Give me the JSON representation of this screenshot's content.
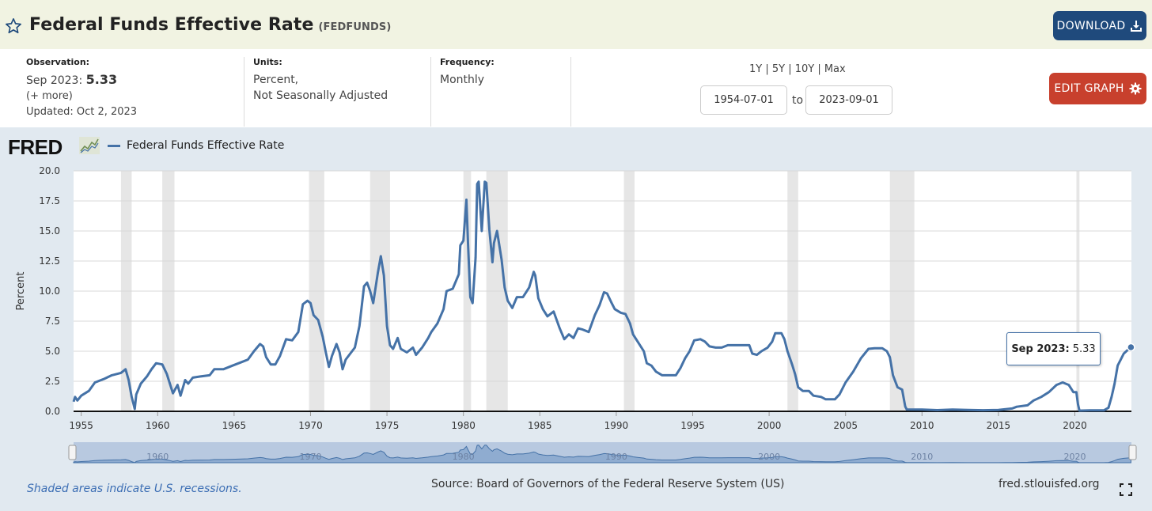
{
  "header": {
    "title": "Federal Funds Effective Rate",
    "series_id": "(FEDFUNDS)",
    "download_label": "DOWNLOAD"
  },
  "meta": {
    "observation_label": "Observation:",
    "observation_period": "Sep 2023:",
    "observation_value": "5.33",
    "more": "(+ more)",
    "updated": "Updated: Oct 2, 2023",
    "units_label": "Units:",
    "units_line1": "Percent,",
    "units_line2": "Not Seasonally Adjusted",
    "frequency_label": "Frequency:",
    "frequency_value": "Monthly",
    "range_links": "1Y | 5Y | 10Y | Max",
    "start_date": "1954-07-01",
    "to_label": "to",
    "end_date": "2023-09-01",
    "edit_label": "EDIT GRAPH"
  },
  "legend": {
    "logo": "FRED",
    "series_name": "Federal Funds Effective Rate",
    "color": "#4572a7"
  },
  "tooltip": {
    "label": "Sep 2023:",
    "value": "5.33"
  },
  "footer": {
    "recession_note": "Shaded areas indicate U.S. recessions.",
    "source": "Source: Board of Governors of the Federal Reserve System (US)",
    "site": "fred.stlouisfed.org"
  },
  "chart_data": {
    "type": "line",
    "ylabel": "Percent",
    "ylim": [
      0,
      20
    ],
    "yticks": [
      "0.0",
      "2.5",
      "5.0",
      "7.5",
      "10.0",
      "12.5",
      "15.0",
      "17.5",
      "20.0"
    ],
    "xlim": [
      1954.5,
      2023.7
    ],
    "xticks": [
      "1955",
      "1960",
      "1965",
      "1970",
      "1975",
      "1980",
      "1985",
      "1990",
      "1995",
      "2000",
      "2005",
      "2010",
      "2015",
      "2020"
    ],
    "navigator_ticks": [
      "1960",
      "1970",
      "1980",
      "1990",
      "2000",
      "2010",
      "2020"
    ],
    "recessions": [
      [
        1957.6,
        1958.3
      ],
      [
        1960.3,
        1961.1
      ],
      [
        1969.9,
        1970.9
      ],
      [
        1973.9,
        1975.2
      ],
      [
        1980.0,
        1980.5
      ],
      [
        1981.5,
        1982.9
      ],
      [
        1990.5,
        1991.2
      ],
      [
        2001.2,
        2001.9
      ],
      [
        2007.9,
        2009.5
      ],
      [
        2020.1,
        2020.3
      ]
    ],
    "series": [
      {
        "name": "Federal Funds Effective Rate",
        "color": "#4572a7",
        "points": [
          [
            1954.5,
            0.8
          ],
          [
            1954.6,
            1.2
          ],
          [
            1954.75,
            0.9
          ],
          [
            1955.0,
            1.3
          ],
          [
            1955.5,
            1.7
          ],
          [
            1955.9,
            2.4
          ],
          [
            1956.5,
            2.7
          ],
          [
            1957.0,
            3.0
          ],
          [
            1957.6,
            3.2
          ],
          [
            1957.9,
            3.5
          ],
          [
            1958.1,
            2.6
          ],
          [
            1958.3,
            1.2
          ],
          [
            1958.4,
            0.7
          ],
          [
            1958.5,
            0.2
          ],
          [
            1958.6,
            1.4
          ],
          [
            1958.9,
            2.3
          ],
          [
            1959.3,
            2.9
          ],
          [
            1959.6,
            3.5
          ],
          [
            1959.9,
            4.0
          ],
          [
            1960.3,
            3.9
          ],
          [
            1960.6,
            3.1
          ],
          [
            1960.8,
            2.3
          ],
          [
            1961.0,
            1.5
          ],
          [
            1961.3,
            2.2
          ],
          [
            1961.5,
            1.3
          ],
          [
            1961.8,
            2.6
          ],
          [
            1962.0,
            2.3
          ],
          [
            1962.3,
            2.8
          ],
          [
            1962.8,
            2.9
          ],
          [
            1963.4,
            3.0
          ],
          [
            1963.7,
            3.5
          ],
          [
            1964.3,
            3.5
          ],
          [
            1964.9,
            3.8
          ],
          [
            1965.5,
            4.1
          ],
          [
            1965.9,
            4.3
          ],
          [
            1966.3,
            5.0
          ],
          [
            1966.7,
            5.6
          ],
          [
            1966.9,
            5.4
          ],
          [
            1967.1,
            4.5
          ],
          [
            1967.4,
            3.9
          ],
          [
            1967.7,
            3.9
          ],
          [
            1968.0,
            4.6
          ],
          [
            1968.4,
            6.0
          ],
          [
            1968.8,
            5.9
          ],
          [
            1969.2,
            6.6
          ],
          [
            1969.5,
            8.9
          ],
          [
            1969.8,
            9.2
          ],
          [
            1970.0,
            9.0
          ],
          [
            1970.2,
            8.0
          ],
          [
            1970.5,
            7.6
          ],
          [
            1970.8,
            6.2
          ],
          [
            1971.0,
            4.9
          ],
          [
            1971.2,
            3.7
          ],
          [
            1971.4,
            4.6
          ],
          [
            1971.7,
            5.6
          ],
          [
            1971.9,
            4.9
          ],
          [
            1972.1,
            3.5
          ],
          [
            1972.3,
            4.3
          ],
          [
            1972.6,
            4.8
          ],
          [
            1972.9,
            5.3
          ],
          [
            1973.2,
            7.1
          ],
          [
            1973.5,
            10.4
          ],
          [
            1973.7,
            10.7
          ],
          [
            1973.9,
            10.0
          ],
          [
            1974.1,
            9.0
          ],
          [
            1974.4,
            11.5
          ],
          [
            1974.6,
            12.9
          ],
          [
            1974.8,
            11.3
          ],
          [
            1975.0,
            7.1
          ],
          [
            1975.2,
            5.5
          ],
          [
            1975.4,
            5.2
          ],
          [
            1975.7,
            6.1
          ],
          [
            1975.9,
            5.2
          ],
          [
            1976.3,
            4.9
          ],
          [
            1976.7,
            5.3
          ],
          [
            1976.9,
            4.7
          ],
          [
            1977.3,
            5.3
          ],
          [
            1977.7,
            6.1
          ],
          [
            1977.9,
            6.6
          ],
          [
            1978.3,
            7.3
          ],
          [
            1978.7,
            8.5
          ],
          [
            1978.9,
            10.0
          ],
          [
            1979.3,
            10.2
          ],
          [
            1979.7,
            11.4
          ],
          [
            1979.8,
            13.8
          ],
          [
            1980.0,
            14.2
          ],
          [
            1980.2,
            17.6
          ],
          [
            1980.3,
            14.0
          ],
          [
            1980.45,
            9.5
          ],
          [
            1980.6,
            9.0
          ],
          [
            1980.8,
            12.8
          ],
          [
            1980.9,
            18.9
          ],
          [
            1981.0,
            19.1
          ],
          [
            1981.2,
            15.0
          ],
          [
            1981.4,
            19.1
          ],
          [
            1981.5,
            19.0
          ],
          [
            1981.7,
            15.1
          ],
          [
            1981.9,
            12.4
          ],
          [
            1982.0,
            14.0
          ],
          [
            1982.2,
            15.0
          ],
          [
            1982.5,
            12.6
          ],
          [
            1982.7,
            10.3
          ],
          [
            1982.9,
            9.2
          ],
          [
            1983.2,
            8.6
          ],
          [
            1983.5,
            9.5
          ],
          [
            1983.9,
            9.5
          ],
          [
            1984.3,
            10.3
          ],
          [
            1984.6,
            11.6
          ],
          [
            1984.7,
            11.3
          ],
          [
            1984.9,
            9.4
          ],
          [
            1985.2,
            8.5
          ],
          [
            1985.5,
            7.9
          ],
          [
            1985.9,
            8.3
          ],
          [
            1986.3,
            6.9
          ],
          [
            1986.6,
            6.0
          ],
          [
            1986.9,
            6.4
          ],
          [
            1987.2,
            6.1
          ],
          [
            1987.5,
            6.9
          ],
          [
            1987.8,
            6.8
          ],
          [
            1988.2,
            6.6
          ],
          [
            1988.6,
            8.0
          ],
          [
            1988.9,
            8.8
          ],
          [
            1989.2,
            9.9
          ],
          [
            1989.4,
            9.8
          ],
          [
            1989.7,
            9.0
          ],
          [
            1989.9,
            8.5
          ],
          [
            1990.3,
            8.2
          ],
          [
            1990.6,
            8.1
          ],
          [
            1990.9,
            7.3
          ],
          [
            1991.1,
            6.4
          ],
          [
            1991.4,
            5.8
          ],
          [
            1991.8,
            5.0
          ],
          [
            1992.0,
            4.0
          ],
          [
            1992.3,
            3.8
          ],
          [
            1992.6,
            3.3
          ],
          [
            1993.0,
            3.0
          ],
          [
            1993.5,
            3.0
          ],
          [
            1993.9,
            3.0
          ],
          [
            1994.2,
            3.6
          ],
          [
            1994.5,
            4.4
          ],
          [
            1994.8,
            5.0
          ],
          [
            1995.1,
            5.9
          ],
          [
            1995.5,
            6.0
          ],
          [
            1995.8,
            5.8
          ],
          [
            1996.1,
            5.4
          ],
          [
            1996.5,
            5.3
          ],
          [
            1996.9,
            5.3
          ],
          [
            1997.3,
            5.5
          ],
          [
            1997.8,
            5.5
          ],
          [
            1998.3,
            5.5
          ],
          [
            1998.7,
            5.5
          ],
          [
            1998.9,
            4.8
          ],
          [
            1999.2,
            4.7
          ],
          [
            1999.5,
            5.0
          ],
          [
            1999.9,
            5.3
          ],
          [
            2000.2,
            5.8
          ],
          [
            2000.4,
            6.5
          ],
          [
            2000.8,
            6.5
          ],
          [
            2001.0,
            6.0
          ],
          [
            2001.2,
            5.0
          ],
          [
            2001.5,
            3.9
          ],
          [
            2001.7,
            3.1
          ],
          [
            2001.9,
            2.0
          ],
          [
            2002.2,
            1.7
          ],
          [
            2002.6,
            1.7
          ],
          [
            2002.9,
            1.3
          ],
          [
            2003.4,
            1.2
          ],
          [
            2003.7,
            1.0
          ],
          [
            2004.3,
            1.0
          ],
          [
            2004.6,
            1.4
          ],
          [
            2005.0,
            2.4
          ],
          [
            2005.5,
            3.3
          ],
          [
            2006.0,
            4.4
          ],
          [
            2006.5,
            5.2
          ],
          [
            2006.9,
            5.25
          ],
          [
            2007.4,
            5.25
          ],
          [
            2007.7,
            5.0
          ],
          [
            2007.9,
            4.5
          ],
          [
            2008.1,
            3.0
          ],
          [
            2008.4,
            2.0
          ],
          [
            2008.7,
            1.8
          ],
          [
            2008.9,
            0.4
          ],
          [
            2009.0,
            0.16
          ],
          [
            2010.0,
            0.15
          ],
          [
            2011.0,
            0.1
          ],
          [
            2012.0,
            0.15
          ],
          [
            2013.0,
            0.11
          ],
          [
            2014.0,
            0.09
          ],
          [
            2015.0,
            0.12
          ],
          [
            2015.9,
            0.24
          ],
          [
            2016.2,
            0.38
          ],
          [
            2016.9,
            0.5
          ],
          [
            2017.3,
            0.9
          ],
          [
            2017.8,
            1.2
          ],
          [
            2018.3,
            1.6
          ],
          [
            2018.8,
            2.2
          ],
          [
            2019.2,
            2.4
          ],
          [
            2019.6,
            2.2
          ],
          [
            2019.9,
            1.6
          ],
          [
            2020.1,
            1.6
          ],
          [
            2020.2,
            0.6
          ],
          [
            2020.3,
            0.06
          ],
          [
            2021.0,
            0.08
          ],
          [
            2021.9,
            0.08
          ],
          [
            2022.2,
            0.3
          ],
          [
            2022.4,
            1.2
          ],
          [
            2022.6,
            2.3
          ],
          [
            2022.8,
            3.8
          ],
          [
            2023.0,
            4.3
          ],
          [
            2023.2,
            4.8
          ],
          [
            2023.45,
            5.1
          ],
          [
            2023.67,
            5.33
          ]
        ]
      }
    ]
  }
}
